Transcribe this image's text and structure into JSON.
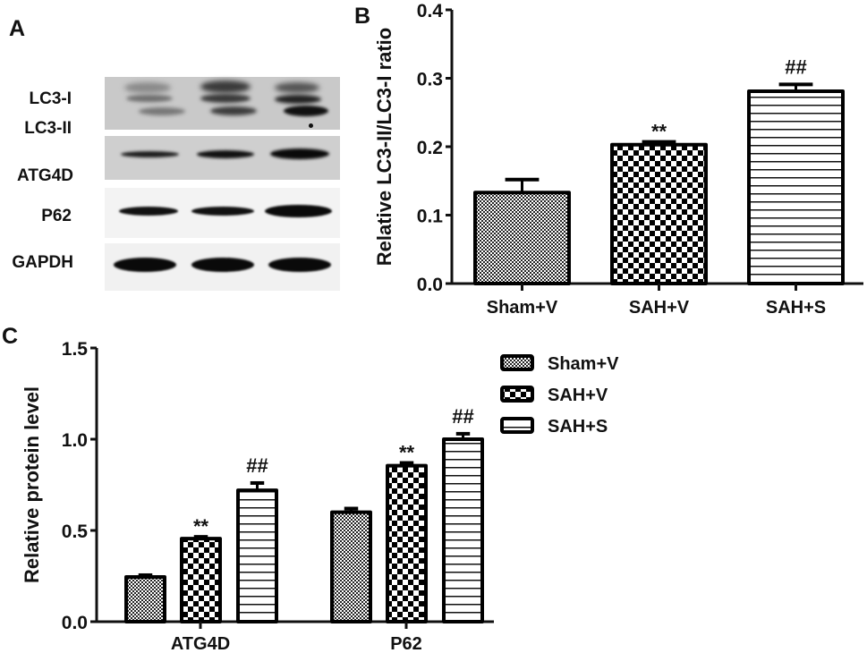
{
  "panels": {
    "A": {
      "label": "A",
      "blot_labels": [
        "LC3-I",
        "LC3-II",
        "ATG4D",
        "P62",
        "GAPDH"
      ],
      "lanes": [
        "Sham+V",
        "SAH+V",
        "SAH+S"
      ]
    },
    "B": {
      "label": "B"
    },
    "C": {
      "label": "C"
    }
  },
  "chart_data": [
    {
      "panel": "B",
      "type": "bar",
      "title": "",
      "xlabel": "",
      "ylabel": "Relative LC3-II/LC3-I ratio",
      "categories": [
        "Sham+V",
        "SAH+V",
        "SAH+S"
      ],
      "values": [
        0.133,
        0.203,
        0.281
      ],
      "errors": [
        0.019,
        0.004,
        0.01
      ],
      "annotations": [
        "",
        "**",
        "##"
      ],
      "patterns": [
        "fine-check",
        "coarse-check",
        "hlines"
      ],
      "ylim": [
        0,
        0.4
      ],
      "yticks": [
        "0.0",
        "0.1",
        "0.2",
        "0.3",
        "0.4"
      ],
      "grid": false,
      "legend": null
    },
    {
      "panel": "C",
      "type": "bar",
      "title": "",
      "xlabel": "",
      "ylabel": "Relative protein level",
      "categories": [
        "ATG4D",
        "P62"
      ],
      "series": [
        {
          "name": "Sham+V",
          "pattern": "fine-check",
          "values": [
            0.245,
            0.6
          ],
          "errors": [
            0.01,
            0.02
          ],
          "annotations": [
            "",
            ""
          ]
        },
        {
          "name": "SAH+V",
          "pattern": "coarse-check",
          "values": [
            0.455,
            0.855
          ],
          "errors": [
            0.01,
            0.015
          ],
          "annotations": [
            "**",
            "**"
          ]
        },
        {
          "name": "SAH+S",
          "pattern": "hlines",
          "values": [
            0.72,
            1.0
          ],
          "errors": [
            0.04,
            0.03
          ],
          "annotations": [
            "##",
            "##"
          ]
        }
      ],
      "ylim": [
        0,
        1.5
      ],
      "yticks": [
        "0.0",
        "0.5",
        "1.0",
        "1.5"
      ],
      "grid": false,
      "legend": {
        "position": "top-right",
        "entries": [
          "Sham+V",
          "SAH+V",
          "SAH+S"
        ]
      }
    }
  ]
}
